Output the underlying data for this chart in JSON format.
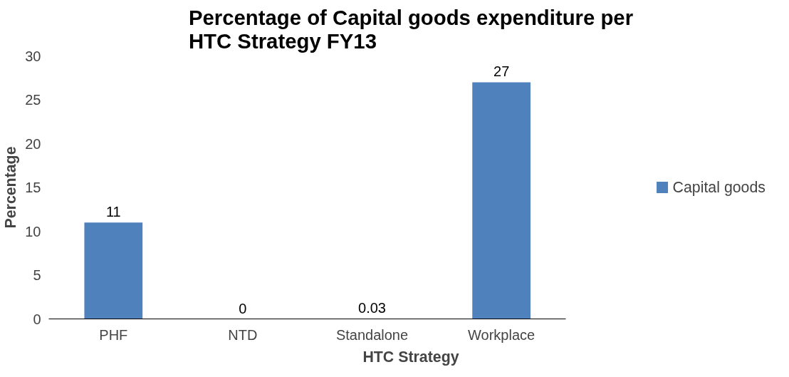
{
  "chart_data": {
    "type": "bar",
    "title": "Percentage of Capital goods expenditure per HTC Strategy FY13",
    "xlabel": "HTC Strategy",
    "ylabel": "Percentage",
    "categories": [
      "PHF",
      "NTD",
      "Standalone",
      "Workplace"
    ],
    "series": [
      {
        "name": "Capital goods",
        "color": "#4f81bd",
        "values": [
          11,
          0,
          0.03,
          27
        ]
      }
    ],
    "ylim": [
      0,
      30
    ],
    "yticks": [
      0,
      5,
      10,
      15,
      20,
      25,
      30
    ],
    "grid": false,
    "legend": "right",
    "data_labels": true
  }
}
